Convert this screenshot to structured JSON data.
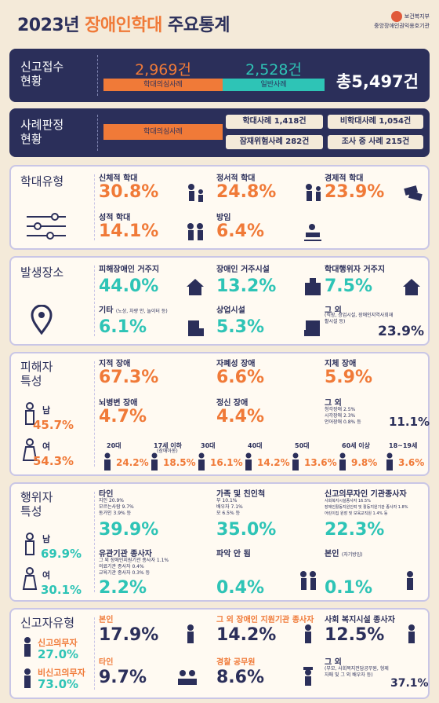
{
  "header": {
    "title_a": "2023년 ",
    "title_b": "장애인학대",
    "title_c": " 주요통계",
    "logo_top": "보건복지부",
    "logo_bottom": "중앙장애인권익옹호기관"
  },
  "report": {
    "label_1": "신고접수",
    "label_2": "현황",
    "suspect_count": "2,969건",
    "suspect_label": "학대의심사례",
    "general_count": "2,528건",
    "general_label": "일반사례",
    "total": "총5,497건"
  },
  "judgment": {
    "label_1": "사례판정",
    "label_2": "현황",
    "suspect_label": "학대의심사례",
    "abuse": "학대사례 1,418건",
    "non_abuse": "비학대사례 1,054건",
    "potential": "잠재위험사례 282건",
    "investigating": "조사 중 사례 215건"
  },
  "types": {
    "title": "학대유형",
    "items": [
      {
        "label": "신체적 학대",
        "value": "30.8%"
      },
      {
        "label": "정서적 학대",
        "value": "24.8%"
      },
      {
        "label": "경제적 학대",
        "value": "23.9%"
      },
      {
        "label": "성적 학대",
        "value": "14.1%"
      },
      {
        "label": "방임",
        "value": "6.4%"
      }
    ]
  },
  "places": {
    "title": "발생장소",
    "items": [
      {
        "label": "피해장애인 거주지",
        "value": "44.0%"
      },
      {
        "label": "장애인 거주시설",
        "value": "13.2%"
      },
      {
        "label": "학대행위자 거주지",
        "value": "7.5%"
      },
      {
        "label": "기타",
        "note": "(노상, 차량 안, 놀이터 등)",
        "value": "6.1%"
      },
      {
        "label": "상업시설",
        "value": "5.3%"
      },
      {
        "label": "그 외",
        "note": "(직장, 상업시설, 장애인지역사회재활시설 등)",
        "value": "23.9%"
      }
    ]
  },
  "victims": {
    "title_1": "피해자",
    "title_2": "특성",
    "male": "남",
    "male_v": "45.7%",
    "female": "여",
    "female_v": "54.3%",
    "items": [
      {
        "label": "지적 장애",
        "value": "67.3%"
      },
      {
        "label": "자폐성 장애",
        "value": "6.6%"
      },
      {
        "label": "지체 장애",
        "value": "5.9%"
      },
      {
        "label": "뇌병변 장애",
        "value": "4.7%"
      },
      {
        "label": "정신 장애",
        "value": "4.4%"
      },
      {
        "label": "그 외",
        "value": "11.1%"
      }
    ],
    "other_notes": [
      "청각장애 2.5%",
      "시각장애 2.3%",
      "언어장애 0.8% 등"
    ],
    "ages": [
      {
        "label": "20대",
        "value": "24.2%"
      },
      {
        "label": "17세 이하",
        "sub": "(장애아동)",
        "value": "18.5%"
      },
      {
        "label": "30대",
        "value": "16.1%"
      },
      {
        "label": "40대",
        "value": "14.2%"
      },
      {
        "label": "50대",
        "value": "13.6%"
      },
      {
        "label": "60세 이상",
        "value": "9.8%"
      },
      {
        "label": "18~19세",
        "value": "3.6%"
      }
    ]
  },
  "perps": {
    "title_1": "행위자",
    "title_2": "특성",
    "male": "남",
    "male_v": "69.9%",
    "female": "여",
    "female_v": "30.1%",
    "items": [
      {
        "label": "타인",
        "notes": [
          "지인 20.9%",
          "모르는사람 9.7%",
          "동거인 3.9% 등"
        ],
        "value": "39.9%"
      },
      {
        "label": "가족 및 친인척",
        "notes": [
          "부 10.1%",
          "배우자 7.1%",
          "모 6.5% 등"
        ],
        "value": "35.0%"
      },
      {
        "label": "신고의무자인 기관종사자",
        "notes": [
          "사회복지시설종사자 16.5%",
          "장애인활동지원인력 및 활동지원기관 종사자 1.8%",
          "어린이집 원장 및 보육교직원 1.4% 등"
        ],
        "value": "22.3%"
      },
      {
        "label": "유관기관 종사자",
        "notes": [
          "그 외 장애인지원기관 종사자 1.1%",
          "의료기관 종사자 0.4%",
          "교육기관 종사자 0.3% 등"
        ],
        "value": "2.2%"
      },
      {
        "label": "파악 안 됨",
        "value": "0.4%"
      },
      {
        "label": "본인",
        "sub": "(자기방임)",
        "value": "0.1%"
      }
    ]
  },
  "reporters": {
    "title": "신고자유형",
    "duty": "신고의무자",
    "duty_v": "27.0%",
    "nonduty": "비신고의무자",
    "nonduty_v": "73.0%",
    "items": [
      {
        "label": "본인",
        "value": "17.9%"
      },
      {
        "label": "그 외 장애인 지원기관 종사자",
        "value": "14.2%"
      },
      {
        "label": "사회 복지시설 종사자",
        "value": "12.5%"
      },
      {
        "label": "타인",
        "value": "9.7%"
      },
      {
        "label": "경찰 공무원",
        "value": "8.6%"
      },
      {
        "label": "그 외",
        "note": "(부모, 사회복지전담공무원, 형제자매 및 그 외 배우자 등)",
        "value": "37.1%"
      }
    ]
  },
  "colors": {
    "orange": "#f07a38",
    "teal": "#2ec4b6",
    "navy": "#2b2f5a"
  }
}
